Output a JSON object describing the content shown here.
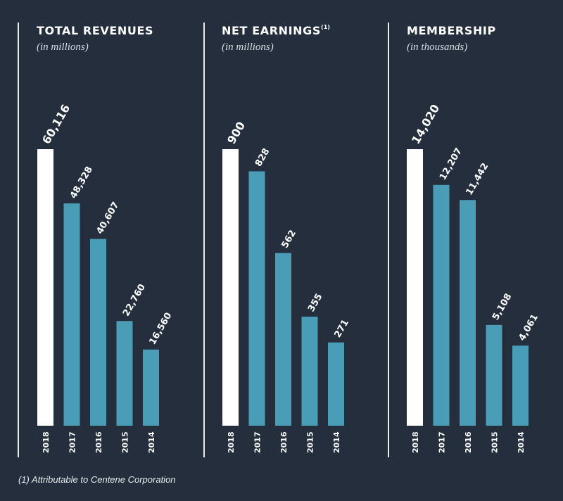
{
  "colors": {
    "background": "#242e3d",
    "highlight_bar": "#ffffff",
    "bar": "#4a9db6",
    "text": "#ffffff"
  },
  "chart_data": [
    {
      "type": "bar",
      "title": "TOTAL REVENUES",
      "title_sup": "",
      "subtitle": "(in millions)",
      "categories": [
        "2018",
        "2017",
        "2016",
        "2015",
        "2014"
      ],
      "values": [
        60116,
        48328,
        40607,
        22760,
        16560
      ],
      "value_labels": [
        "60,116",
        "48,328",
        "40,607",
        "22,760",
        "16,560"
      ],
      "highlight_index": 0,
      "ylim": [
        0,
        60116
      ]
    },
    {
      "type": "bar",
      "title": "NET EARNINGS",
      "title_sup": "(1)",
      "subtitle": "(in millions)",
      "categories": [
        "2018",
        "2017",
        "2016",
        "2015",
        "2014"
      ],
      "values": [
        900,
        828,
        562,
        355,
        271
      ],
      "value_labels": [
        "900",
        "828",
        "562",
        "355",
        "271"
      ],
      "highlight_index": 0,
      "ylim": [
        0,
        900
      ]
    },
    {
      "type": "bar",
      "title": "MEMBERSHIP",
      "title_sup": "",
      "subtitle": "(in thousands)",
      "categories": [
        "2018",
        "2017",
        "2016",
        "2015",
        "2014"
      ],
      "values": [
        14020,
        12207,
        11442,
        5108,
        4061
      ],
      "value_labels": [
        "14,020",
        "12,207",
        "11,442",
        "5,108",
        "4,061"
      ],
      "highlight_index": 0,
      "ylim": [
        0,
        14020
      ]
    }
  ],
  "footnote": "(1) Attributable to Centene Corporation"
}
